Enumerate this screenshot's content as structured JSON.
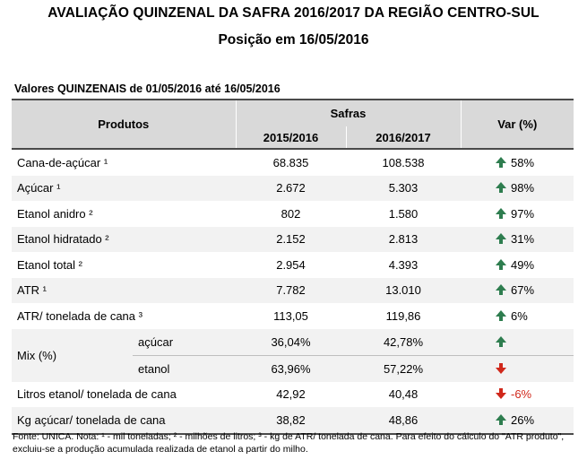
{
  "title": "AVALIAÇÃO QUINZENAL DA SAFRA 2016/2017 DA REGIÃO CENTRO-SUL",
  "subtitle": "Posição em 16/05/2016",
  "period_label": "Valores QUINZENAIS de 01/05/2016 até 16/05/2016",
  "headers": {
    "produtos": "Produtos",
    "safras": "Safras",
    "y1": "2015/2016",
    "y2": "2016/2017",
    "var": "Var (%)"
  },
  "rows": [
    {
      "label": "Cana-de-açúcar ¹",
      "v1": "68.835",
      "v2": "108.538",
      "var": "58%",
      "dir": "up"
    },
    {
      "label": "Açúcar ¹",
      "v1": "2.672",
      "v2": "5.303",
      "var": "98%",
      "dir": "up"
    },
    {
      "label": "Etanol anidro ²",
      "v1": "802",
      "v2": "1.580",
      "var": "97%",
      "dir": "up"
    },
    {
      "label": "Etanol hidratado ²",
      "v1": "2.152",
      "v2": "2.813",
      "var": "31%",
      "dir": "up"
    },
    {
      "label": "Etanol total ²",
      "v1": "2.954",
      "v2": "4.393",
      "var": "49%",
      "dir": "up"
    },
    {
      "label": "ATR ¹",
      "v1": "7.782",
      "v2": "13.010",
      "var": "67%",
      "dir": "up"
    },
    {
      "label": "ATR/ tonelada de cana ³",
      "v1": "113,05",
      "v2": "119,86",
      "var": "6%",
      "dir": "up"
    }
  ],
  "mix": {
    "label": "Mix (%)",
    "acucar": {
      "label": "açúcar",
      "v1": "36,04%",
      "v2": "42,78%",
      "dir": "up"
    },
    "etanol": {
      "label": "etanol",
      "v1": "63,96%",
      "v2": "57,22%",
      "dir": "down"
    }
  },
  "rows_after": [
    {
      "label": "Litros etanol/ tonelada de cana",
      "v1": "42,92",
      "v2": "40,48",
      "var": "-6%",
      "dir": "down"
    },
    {
      "label": "Kg açúcar/ tonelada de cana",
      "v1": "38,82",
      "v2": "48,86",
      "var": "26%",
      "dir": "up"
    }
  ],
  "footnote": "Fonte: UNICA. Nota: ¹ - mil toneladas; ² - milhões de litros; ³ - kg de ATR/ tonelada de cana. Para efeito do cálculo do \"ATR produto\", excluiu-se a produção acumulada realizada de etanol a partir do milho.",
  "colors": {
    "up_arrow": "#2e7d4f",
    "down_arrow": "#d0281b",
    "header_bg": "#d9d9d9",
    "row_shade": "#f2f2f2"
  },
  "icons": {
    "up": "arrow-up-icon",
    "down": "arrow-down-icon"
  }
}
